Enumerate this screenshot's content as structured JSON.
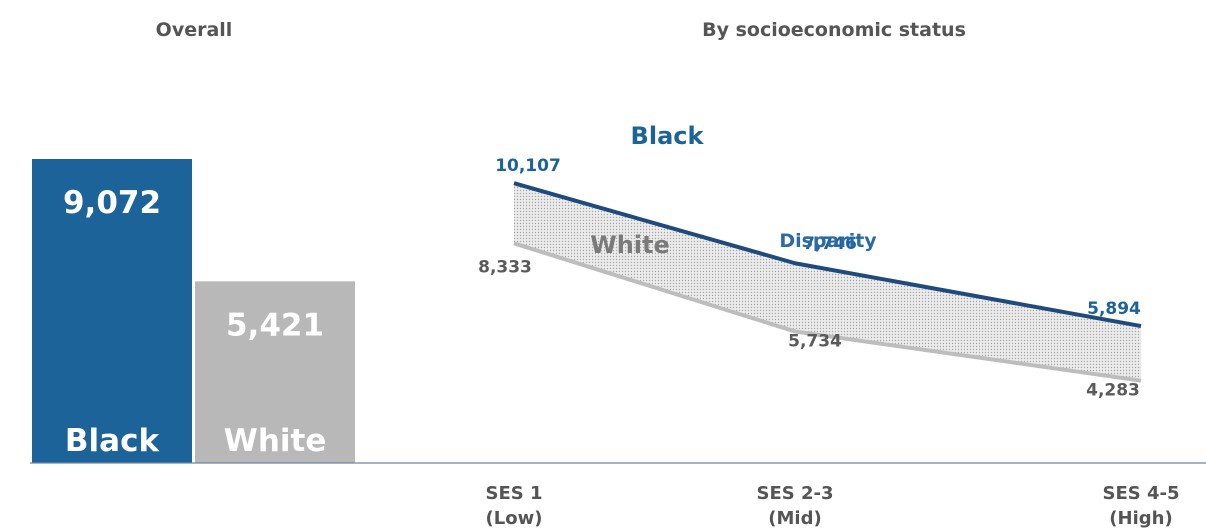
{
  "colors": {
    "black": "#1c6399",
    "black_line": "#1f4a7c",
    "white": "#b8b8b8",
    "white_line": "#bdbdbd",
    "title": "#555555",
    "label_gray": "#5a5a5a",
    "axis": "#6f86a0"
  },
  "chart_data": [
    {
      "type": "bar",
      "title": "Overall",
      "categories": [
        "Black",
        "White"
      ],
      "values": [
        9072,
        5421
      ],
      "value_labels": [
        "9,072",
        "5,421"
      ]
    },
    {
      "type": "line",
      "title": "By socioeconomic status",
      "x": [
        "SES 1",
        "SES 2-3",
        "SES 4-5"
      ],
      "x_sub": [
        "(Low)",
        "(Mid)",
        "(High)"
      ],
      "series": [
        {
          "name": "Black",
          "values": [
            10107,
            7746,
            5894
          ],
          "value_labels": [
            "10,107",
            "7,746",
            "5,894"
          ]
        },
        {
          "name": "White",
          "values": [
            8333,
            5734,
            4283
          ],
          "value_labels": [
            "8,333",
            "5,734",
            "4,283"
          ]
        }
      ],
      "fill_label": "Disparity",
      "grid": false
    }
  ]
}
